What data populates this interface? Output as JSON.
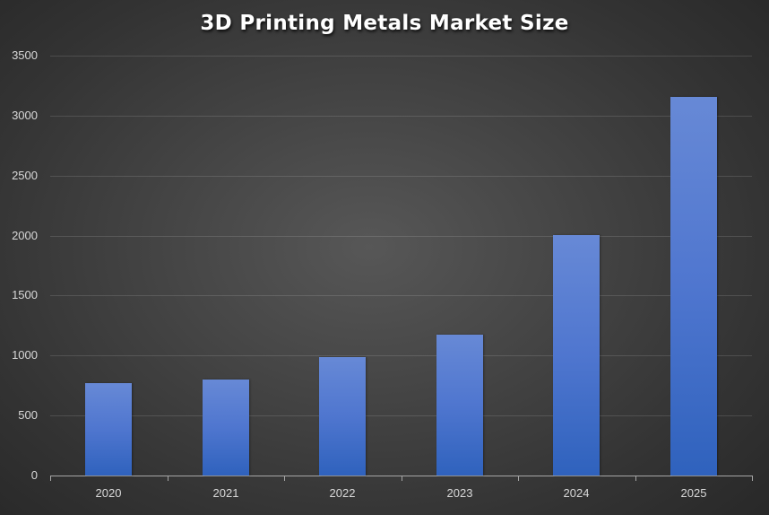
{
  "chart_data": {
    "type": "bar",
    "title": "3D Printing Metals Market Size",
    "categories": [
      "2020",
      "2021",
      "2022",
      "2023",
      "2024",
      "2025"
    ],
    "values": [
      770,
      800,
      987,
      1174,
      2004,
      3156
    ],
    "series": [
      {
        "name": "Market Size",
        "values": [
          770,
          800,
          987,
          1174,
          2004,
          3156
        ],
        "color": "#4f76cf"
      }
    ],
    "xlabel": "",
    "ylabel": "",
    "ylim": [
      0,
      3500
    ],
    "yticks": [
      "0",
      "500",
      "1000",
      "1500",
      "2000",
      "2500",
      "3000",
      "3500"
    ],
    "grid": true,
    "legend": "none"
  },
  "colors": {
    "bar": "#4f76cf",
    "background": "#404040",
    "text": "#d9d9d9",
    "title": "#ffffff"
  }
}
